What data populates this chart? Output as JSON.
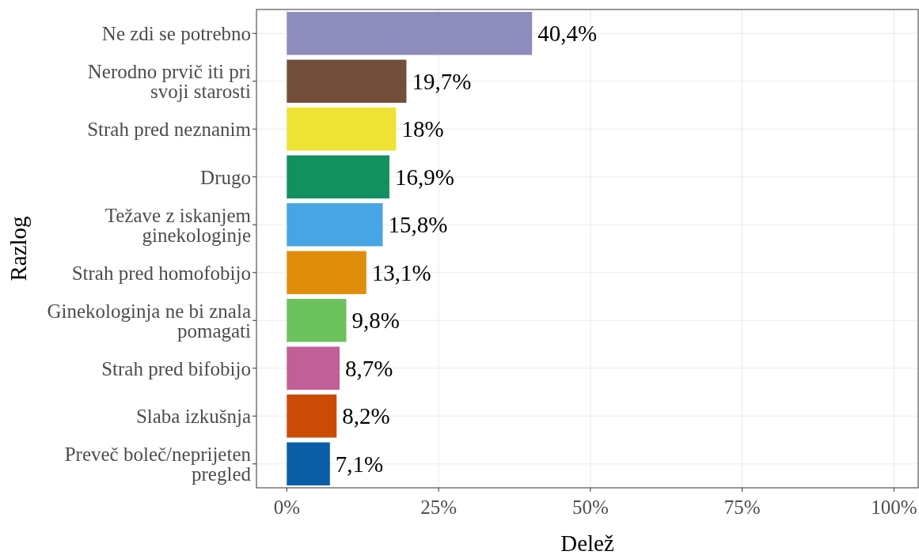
{
  "chart_data": {
    "type": "bar",
    "orientation": "horizontal",
    "xlabel": "Delež",
    "ylabel": "Razlog",
    "categories": [
      "Ne zdi se potrebno",
      "Nerodno prvič iti pri\nsvoji starosti",
      "Strah pred neznanim",
      "Drugo",
      "Težave z iskanjem\nginekologinje",
      "Strah pred homofobijo",
      "Ginekologinja ne bi znala\npomagati",
      "Strah pred bifobijo",
      "Slaba izkušnja",
      "Preveč boleč/neprijeten\npregled"
    ],
    "values": [
      40.4,
      19.7,
      18,
      16.9,
      15.8,
      13.1,
      9.8,
      8.7,
      8.2,
      7.1
    ],
    "value_labels": [
      "40,4%",
      "19,7%",
      "18%",
      "16,9%",
      "15,8%",
      "13,1%",
      "9,8%",
      "8,7%",
      "8,2%",
      "7,1%"
    ],
    "colors": [
      "#8e8cba",
      "#734e3a",
      "#eee332",
      "#139060",
      "#48a5e3",
      "#e08e0a",
      "#6cc35e",
      "#c06096",
      "#ca4a06",
      "#0a5ea5"
    ],
    "xlim": [
      -5,
      104
    ],
    "xticks": [
      {
        "value": 0,
        "label": "0%"
      },
      {
        "value": 25,
        "label": "25%"
      },
      {
        "value": 50,
        "label": "50%"
      },
      {
        "value": 75,
        "label": "75%"
      },
      {
        "value": 100,
        "label": "100%"
      }
    ],
    "grid": true
  }
}
